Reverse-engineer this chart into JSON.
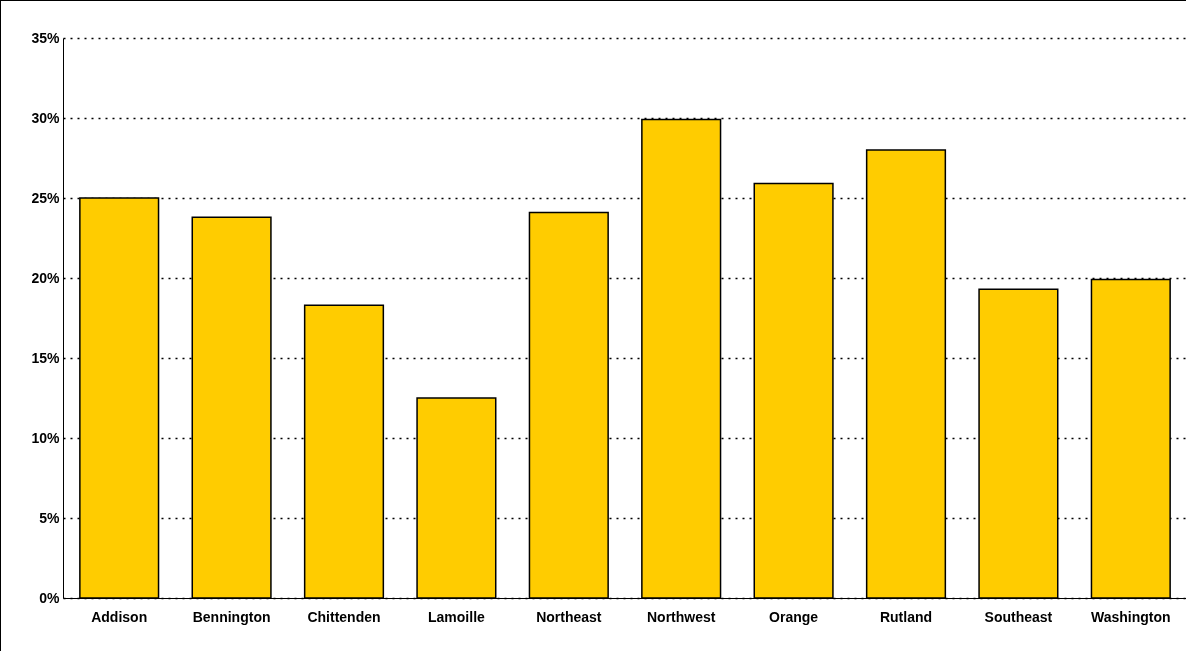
{
  "chart_data": {
    "type": "bar",
    "categories": [
      "Addison",
      "Bennington",
      "Chittenden",
      "Lamoille",
      "Northeast",
      "Northwest",
      "Orange",
      "Rutland",
      "Southeast",
      "Washington"
    ],
    "values": [
      25.0,
      23.8,
      18.3,
      12.5,
      24.1,
      29.9,
      25.9,
      28.0,
      19.3,
      19.9
    ],
    "color": "#ffcc00",
    "ylim": [
      0,
      35
    ],
    "yticks": [
      {
        "value": 0,
        "label": "0%"
      },
      {
        "value": 5,
        "label": "5%"
      },
      {
        "value": 10,
        "label": "10%"
      },
      {
        "value": 15,
        "label": "15%"
      },
      {
        "value": 20,
        "label": "20%"
      },
      {
        "value": 25,
        "label": "25%"
      },
      {
        "value": 30,
        "label": "30%"
      },
      {
        "value": 35,
        "label": "35%"
      }
    ],
    "grid": "y"
  }
}
